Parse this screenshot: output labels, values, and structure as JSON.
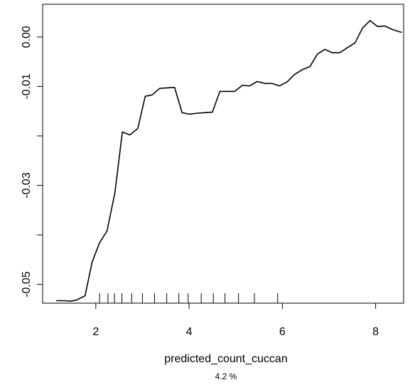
{
  "chart_data": {
    "type": "line",
    "title": "",
    "xlabel": "predicted_count_cuccan",
    "subtitle": "4.2 %",
    "ylabel": "",
    "xlim": [
      0.86,
      8.6
    ],
    "ylim": [
      -0.0538,
      0.0066
    ],
    "x_ticks": [
      2,
      4,
      6,
      8
    ],
    "x_tick_labels": [
      "2",
      "4",
      "6",
      "8"
    ],
    "y_ticks": [
      0.0,
      -0.01,
      -0.02,
      -0.03,
      -0.04,
      -0.05
    ],
    "y_tick_labels": [
      "0.00",
      "-0.01",
      "",
      "-0.03",
      "",
      "-0.05"
    ],
    "grid": false,
    "line_color": "#000000",
    "series": [
      {
        "x": [
          1.15,
          1.33,
          1.45,
          1.58,
          1.77,
          1.92,
          2.08,
          2.24,
          2.41,
          2.57,
          2.73,
          2.9,
          3.06,
          3.21,
          3.37,
          3.69,
          3.85,
          4.01,
          4.18,
          4.34,
          4.5,
          4.66,
          4.82,
          4.98,
          5.14,
          5.3,
          5.46,
          5.63,
          5.78,
          5.94,
          6.1,
          6.26,
          6.43,
          6.59,
          6.75,
          6.91,
          7.07,
          7.23,
          7.39,
          7.56,
          7.72,
          7.88,
          8.04,
          8.2,
          8.36,
          8.56
        ],
        "y": [
          -0.0533,
          -0.0533,
          -0.0534,
          -0.0532,
          -0.0523,
          -0.0455,
          -0.0416,
          -0.0392,
          -0.0315,
          -0.0192,
          -0.0198,
          -0.0185,
          -0.012,
          -0.0117,
          -0.0104,
          -0.0102,
          -0.0153,
          -0.0156,
          -0.0154,
          -0.0153,
          -0.0152,
          -0.011,
          -0.011,
          -0.011,
          -0.0098,
          -0.0099,
          -0.009,
          -0.0094,
          -0.0094,
          -0.0099,
          -0.0091,
          -0.0076,
          -0.0066,
          -0.006,
          -0.0035,
          -0.0025,
          -0.0032,
          -0.0032,
          -0.0022,
          -0.0012,
          0.0018,
          0.0033,
          0.0021,
          0.0022,
          0.0015,
          0.0009
        ]
      }
    ],
    "rug_x": [
      2.08,
      2.26,
      2.4,
      2.56,
      2.77,
      3.0,
      3.26,
      3.52,
      3.78,
      3.98,
      4.26,
      4.52,
      4.77,
      5.06,
      5.4,
      5.9
    ]
  }
}
